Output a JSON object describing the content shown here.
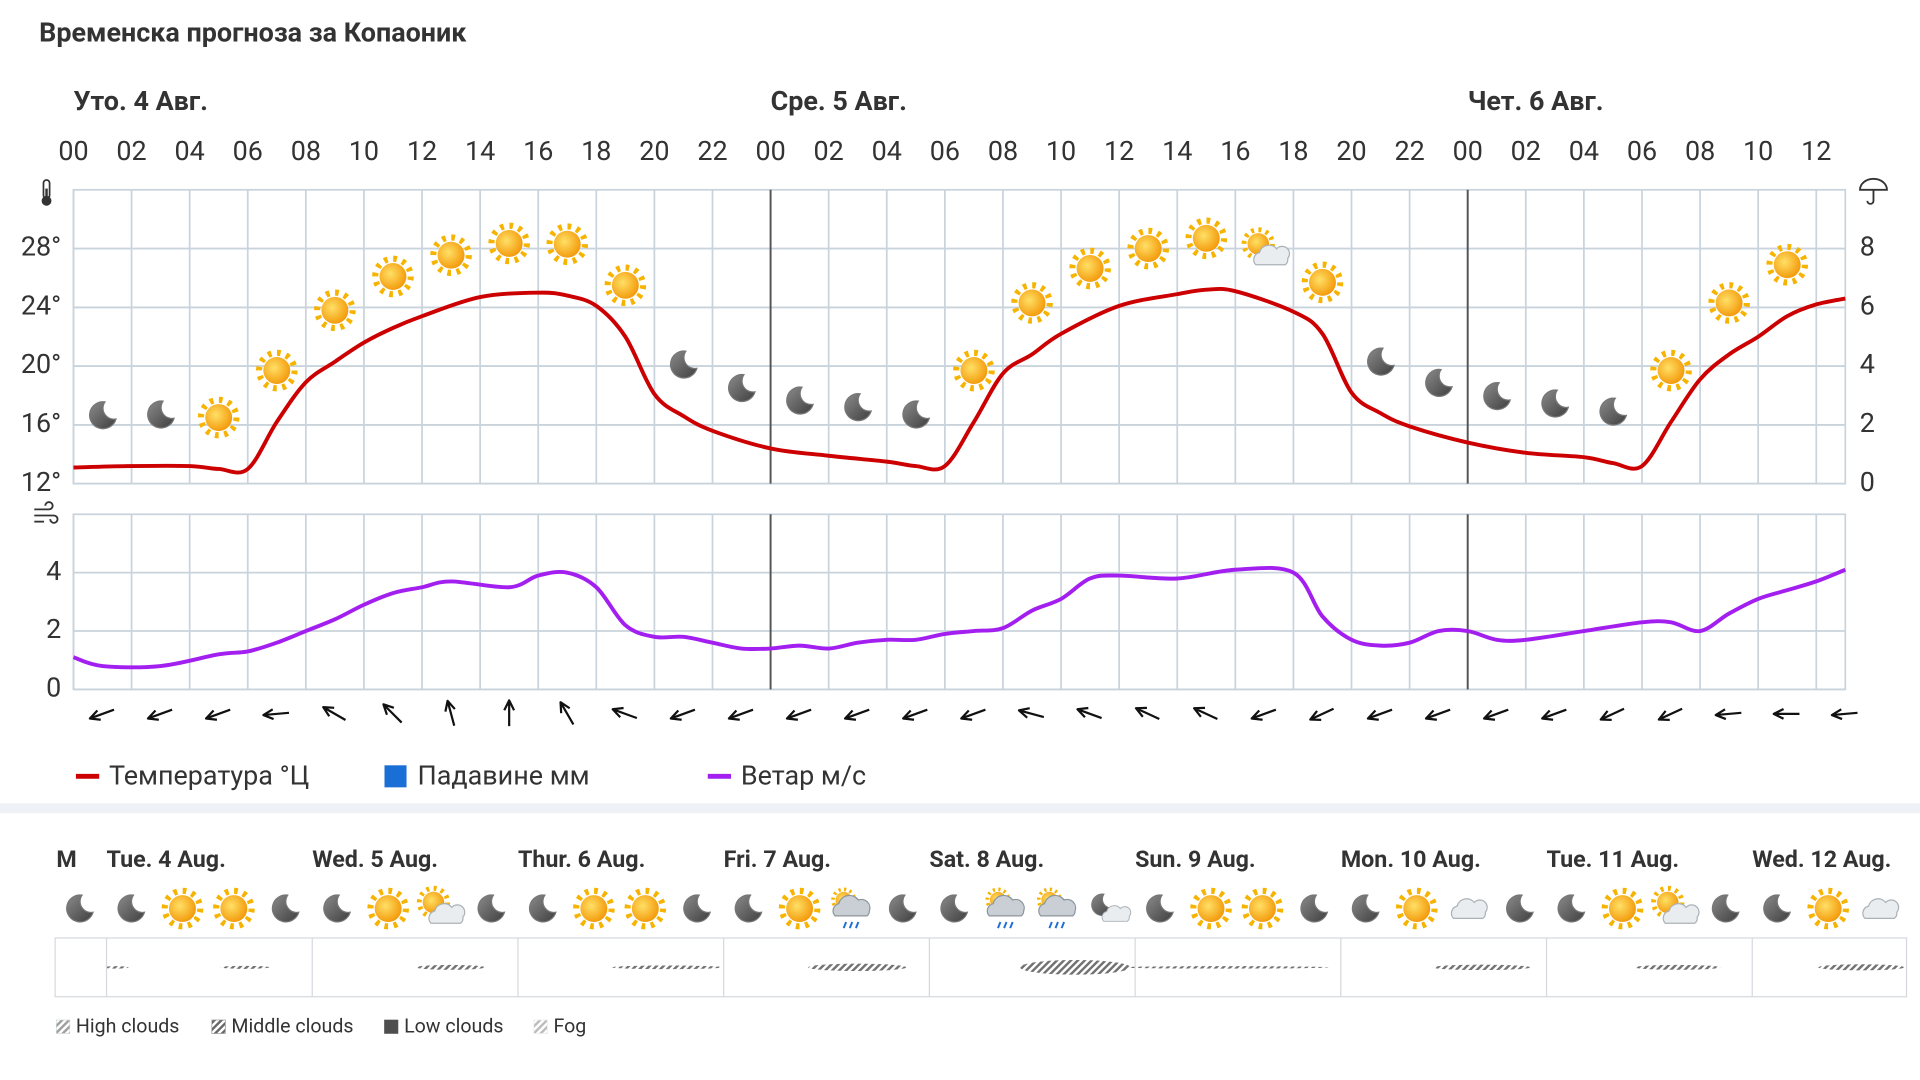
{
  "title": "Временска прогноза за Копаоник",
  "chart_data": [
    {
      "type": "line",
      "day_labels": [
        {
          "x": 0,
          "label": "Уто. 4 Авг."
        },
        {
          "x": 24,
          "label": "Сре. 5 Авг."
        },
        {
          "x": 48,
          "label": "Чет. 6 Авг."
        }
      ],
      "xlim": [
        0,
        61
      ],
      "xticks": [
        {
          "value": 0,
          "label": "00"
        },
        {
          "value": 2,
          "label": "02"
        },
        {
          "value": 4,
          "label": "04"
        },
        {
          "value": 6,
          "label": "06"
        },
        {
          "value": 8,
          "label": "08"
        },
        10,
        12,
        14,
        16,
        18,
        20,
        22,
        {
          "value": 24,
          "label": "00"
        },
        {
          "value": 26,
          "label": "02"
        },
        {
          "value": 28,
          "label": "04"
        },
        {
          "value": 30,
          "label": "06"
        },
        {
          "value": 32,
          "label": "08"
        },
        {
          "value": 34,
          "label": "10"
        },
        {
          "value": 36,
          "label": "12"
        },
        {
          "value": 38,
          "label": "14"
        },
        {
          "value": 40,
          "label": "16"
        },
        {
          "value": 42,
          "label": "18"
        },
        {
          "value": 44,
          "label": "20"
        },
        {
          "value": 46,
          "label": "22"
        },
        {
          "value": 48,
          "label": "00"
        },
        {
          "value": 50,
          "label": "02"
        },
        {
          "value": 52,
          "label": "04"
        },
        {
          "value": 54,
          "label": "06"
        },
        {
          "value": 56,
          "label": "08"
        },
        {
          "value": 58,
          "label": "10"
        },
        {
          "value": 60,
          "label": "12"
        }
      ],
      "ylim": [
        12,
        32
      ],
      "yticks": [
        {
          "value": 12,
          "label": "12°"
        },
        {
          "value": 16,
          "label": "16°"
        },
        {
          "value": 20,
          "label": "20°"
        },
        {
          "value": 24,
          "label": "24°"
        },
        {
          "value": 28,
          "label": "28°"
        }
      ],
      "y2lim": [
        0,
        10
      ],
      "y2ticks": [
        0,
        2,
        4,
        6,
        8
      ],
      "grid": true,
      "x": [
        0,
        2,
        4,
        5,
        6,
        7,
        8,
        9,
        10,
        11,
        12,
        14,
        16,
        17,
        18,
        19,
        20,
        21,
        22,
        24,
        26,
        28,
        29,
        30,
        31,
        32,
        33,
        34,
        36,
        38,
        39,
        40,
        42,
        43,
        44,
        45,
        46,
        48,
        50,
        52,
        53,
        54,
        55,
        56,
        57,
        58,
        59,
        60,
        61
      ],
      "series": [
        {
          "name": "Температура °Ц",
          "color": "#cc0000",
          "type": "line",
          "values": [
            13.1,
            13.2,
            13.2,
            13.0,
            13.0,
            16.2,
            18.9,
            20.3,
            21.6,
            22.6,
            23.4,
            24.7,
            25.0,
            24.8,
            24.1,
            22.0,
            18.1,
            16.6,
            15.6,
            14.4,
            13.9,
            13.5,
            13.2,
            13.2,
            16.2,
            19.5,
            20.8,
            22.2,
            24.1,
            24.9,
            25.2,
            25.1,
            23.7,
            22.2,
            18.2,
            16.8,
            15.9,
            14.8,
            14.1,
            13.8,
            13.4,
            13.2,
            16.2,
            19.1,
            20.8,
            22.0,
            23.4,
            24.2,
            24.6
          ]
        },
        {
          "name": "Падавине мм",
          "color": "#1a6fd6",
          "type": "bar",
          "axis": "y2",
          "values": [
            0,
            0,
            0,
            0,
            0,
            0,
            0,
            0,
            0,
            0,
            0,
            0,
            0,
            0,
            0,
            0,
            0,
            0,
            0,
            0,
            0,
            0,
            0,
            0,
            0,
            0,
            0,
            0,
            0,
            0,
            0,
            0,
            0,
            0,
            0,
            0,
            0,
            0,
            0,
            0,
            0,
            0,
            0,
            0,
            0,
            0,
            0,
            0,
            0
          ]
        }
      ]
    },
    {
      "type": "line",
      "xlim": [
        0,
        61
      ],
      "ylim": [
        0,
        6
      ],
      "yticks": [
        0,
        2,
        4
      ],
      "grid": true,
      "x": [
        0,
        1,
        3,
        5,
        6,
        7,
        8,
        9,
        10,
        11,
        12,
        13,
        15,
        16,
        17,
        18,
        19,
        20,
        21,
        22,
        23,
        24,
        25,
        26,
        27,
        28,
        29,
        30,
        31,
        32,
        33,
        34,
        35,
        36,
        38,
        40,
        42,
        43,
        44,
        45,
        46,
        47,
        48,
        49,
        50,
        52,
        54,
        55,
        56,
        57,
        58,
        59,
        60,
        61
      ],
      "series": [
        {
          "name": "Ветар м/с",
          "color": "#a31ff0",
          "type": "line",
          "values": [
            1.1,
            0.8,
            0.8,
            1.2,
            1.3,
            1.6,
            2.0,
            2.4,
            2.9,
            3.3,
            3.5,
            3.7,
            3.5,
            3.9,
            4.0,
            3.5,
            2.2,
            1.8,
            1.8,
            1.6,
            1.4,
            1.4,
            1.5,
            1.4,
            1.6,
            1.7,
            1.7,
            1.9,
            2.0,
            2.1,
            2.7,
            3.1,
            3.8,
            3.9,
            3.8,
            4.1,
            4.0,
            2.5,
            1.7,
            1.5,
            1.6,
            2.0,
            2.0,
            1.7,
            1.7,
            2.0,
            2.3,
            2.3,
            2.0,
            2.6,
            3.1,
            3.4,
            3.7,
            4.1
          ]
        }
      ],
      "wind_direction": {
        "x": [
          1,
          3,
          5,
          7,
          9,
          11,
          13,
          15,
          17,
          19,
          21,
          23,
          25,
          27,
          29,
          31,
          33,
          35,
          37,
          39,
          41,
          43,
          45,
          47,
          49,
          51,
          53,
          55,
          57,
          59,
          61
        ],
        "values": [
          250,
          250,
          250,
          265,
          300,
          315,
          345,
          0,
          330,
          290,
          250,
          250,
          250,
          250,
          250,
          250,
          285,
          290,
          295,
          295,
          250,
          245,
          250,
          250,
          250,
          250,
          245,
          245,
          265,
          270,
          265
        ]
      }
    }
  ],
  "outlook": {
    "days": [
      "M",
      "Tue. 4 Aug.",
      "Wed. 5 Aug.",
      "Thur. 6 Aug.",
      "Fri. 7 Aug.",
      "Sat. 8 Aug.",
      "Sun. 9 Aug.",
      "Mon. 10 Aug.",
      "Tue. 11 Aug.",
      "Wed. 12 Aug."
    ],
    "cloud_legend": [
      "High clouds",
      "Middle clouds",
      "Low clouds",
      "Fog"
    ]
  }
}
